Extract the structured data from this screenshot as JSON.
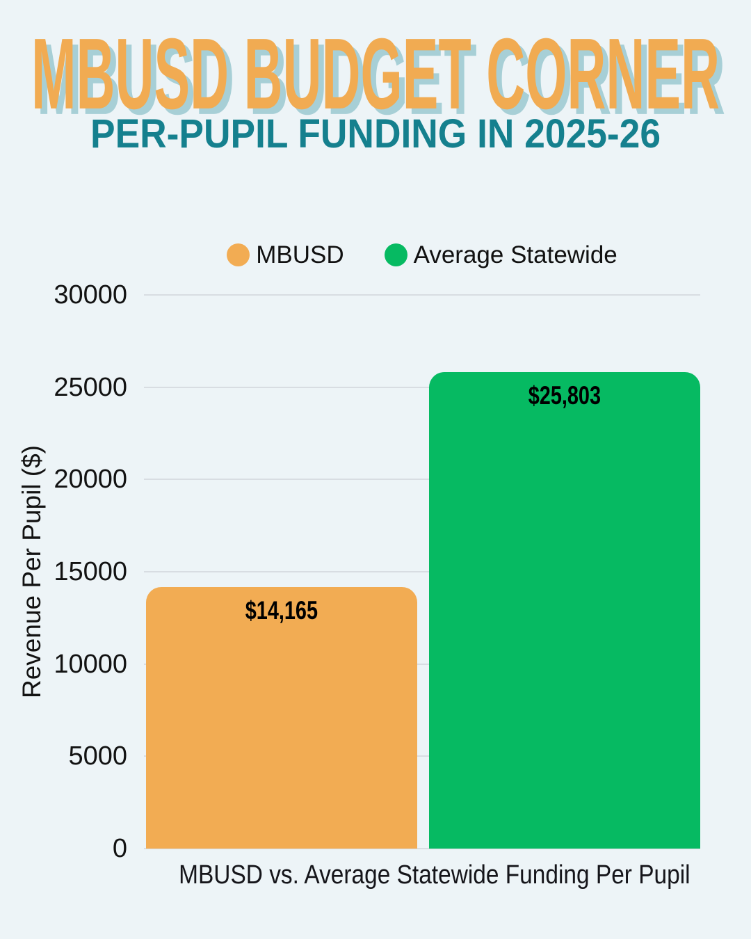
{
  "page": {
    "background_color": "#edf4f7"
  },
  "header": {
    "title": "MBUSD BUDGET CORNER",
    "title_color": "#f1ab52",
    "title_shadow_color": "#a7cfd6",
    "subtitle": "PER-PUPIL FUNDING IN 2025-26",
    "subtitle_color": "#15808e"
  },
  "legend": {
    "items": [
      {
        "label": "MBUSD",
        "color": "#f2ac53",
        "marker": "circle-icon"
      },
      {
        "label": "Average Statewide",
        "color": "#06ba62",
        "marker": "circle-icon"
      }
    ]
  },
  "chart_data": {
    "type": "bar",
    "categories": [
      "MBUSD",
      "Average Statewide"
    ],
    "values": [
      14165,
      25803
    ],
    "value_labels": [
      "$14,165",
      "$25,803"
    ],
    "bar_colors": [
      "#f2ac53",
      "#06ba62"
    ],
    "title": "",
    "xlabel": "MBUSD vs. Average Statewide Funding Per Pupil",
    "ylabel": "Revenue Per Pupil ($)",
    "ylim": [
      0,
      30000
    ],
    "yticks": [
      0,
      5000,
      10000,
      15000,
      20000,
      25000,
      30000
    ],
    "grid": true,
    "gridline_color": "#d8dde2",
    "tick_color": "#121212",
    "value_label_color": "#000000",
    "legend_position": "top"
  }
}
